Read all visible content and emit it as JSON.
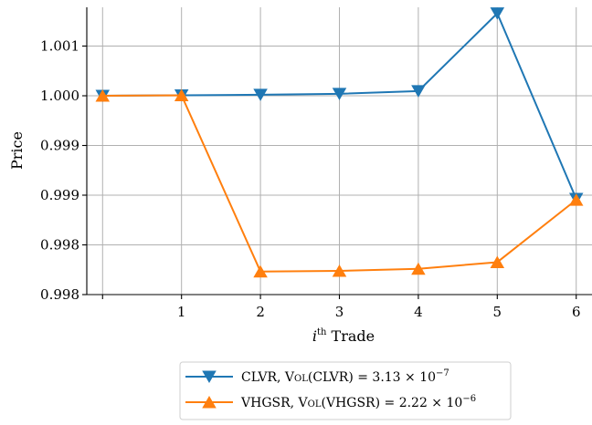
{
  "chart_data": {
    "type": "line",
    "title": "",
    "xlabel": "i^th Trade",
    "xlabel_parts": {
      "var": "i",
      "sup": "th",
      "rest": " Trade"
    },
    "ylabel": "Price",
    "x": [
      0,
      1,
      2,
      3,
      4,
      5,
      6
    ],
    "xticks": [
      0,
      1,
      2,
      3,
      4,
      5,
      6
    ],
    "xtick_labels": [
      "",
      "1",
      "2",
      "3",
      "4",
      "5",
      "6"
    ],
    "xlim": [
      -0.2,
      6.2
    ],
    "yticks": [
      0.998,
      0.9985,
      0.999,
      0.9995,
      1.0,
      1.0005
    ],
    "ytick_labels": [
      "0.998",
      "0.998",
      "0.999",
      "0.999",
      "1.000",
      "1.001"
    ],
    "ylim": [
      0.998,
      1.00089
    ],
    "grid": true,
    "legend_position": "below",
    "series": [
      {
        "name": "CLVR, Vol(CLVR) = 3.13 × 10^−7",
        "color": "#1f77b4",
        "marker": "triangle-down",
        "values": [
          1.0,
          1.000005,
          1.00001,
          1.00002,
          1.000047,
          1.000829,
          0.998963
        ]
      },
      {
        "name": "VHGSR, Vol(VHGSR) = 2.22 × 10^−6",
        "color": "#ff7f0e",
        "marker": "triangle-up",
        "values": [
          1.0,
          1.000005,
          0.998232,
          0.998238,
          0.998259,
          0.998326,
          0.998953
        ]
      }
    ],
    "legend": [
      {
        "name": "CLVR",
        "fn": "Vol",
        "arg": "(CLVR) = 3.13 × 10",
        "exp": "−7"
      },
      {
        "name": "VHGSR",
        "fn": "Vol",
        "arg": "(VHGSR) = 2.22 × 10",
        "exp": "−6"
      }
    ]
  }
}
